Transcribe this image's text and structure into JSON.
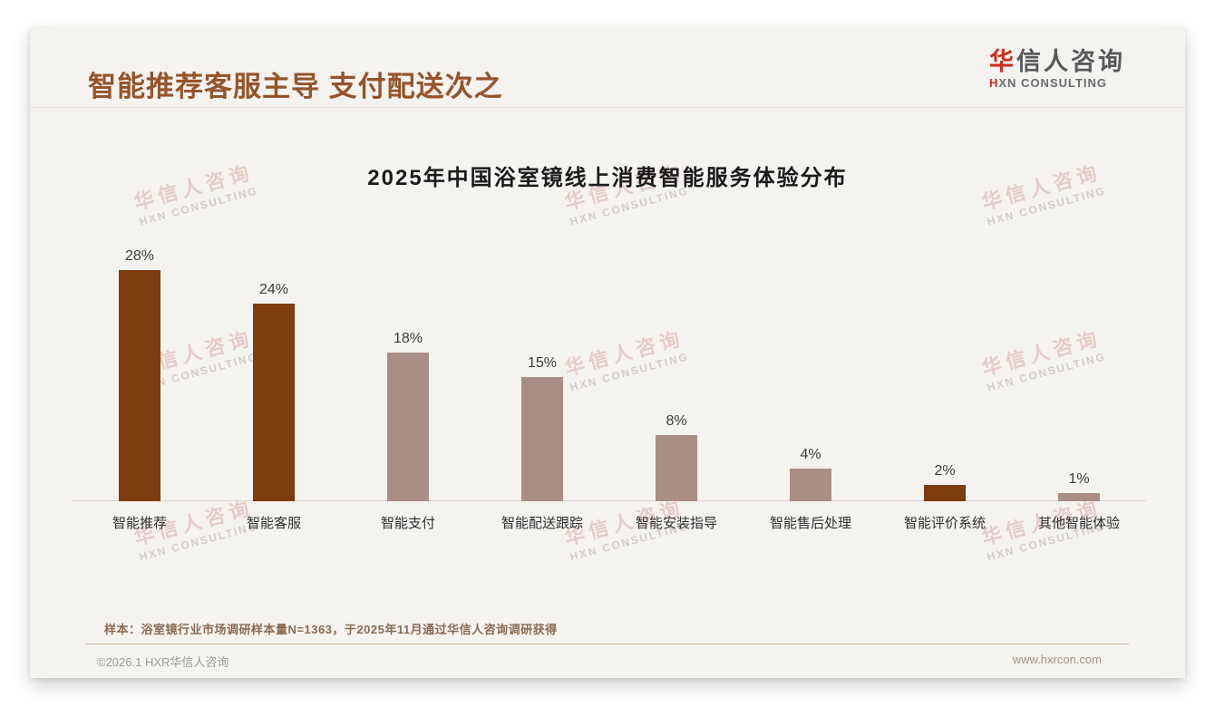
{
  "page": {
    "title": "智能推荐客服主导 支付配送次之",
    "logo": {
      "cn_accent": "华",
      "cn_rest": "信人咨询",
      "en_accent": "H",
      "en_rest": "XN CONSULTING"
    },
    "watermark": {
      "line1": "华信人咨询",
      "line2": "HXN CONSULTING"
    },
    "footer": {
      "sample_note": "样本：浴室镜行业市场调研样本量N=1363，于2025年11月通过华信人咨询调研获得",
      "copyright": "©2026.1 HXR华信人咨询",
      "website": "www.hxrcon.com"
    }
  },
  "chart_data": {
    "type": "bar",
    "title": "2025年中国浴室镜线上消费智能服务体验分布",
    "categories": [
      "智能推荐",
      "智能客服",
      "智能支付",
      "智能配送跟踪",
      "智能安装指导",
      "智能售后处理",
      "智能评价系统",
      "其他智能体验"
    ],
    "values": [
      28,
      24,
      18,
      15,
      8,
      4,
      2,
      1
    ],
    "value_labels": [
      "28%",
      "24%",
      "18%",
      "15%",
      "8%",
      "4%",
      "2%",
      "1%"
    ],
    "unit": "%",
    "xlabel": "",
    "ylabel": "",
    "ylim": [
      0,
      30
    ],
    "grid": false,
    "legend": false,
    "bar_colors": [
      "#7e3b0e",
      "#7e3b0e",
      "#a98e87",
      "#a98e87",
      "#a98e87",
      "#a98e87",
      "#7e3b0e",
      "#a98e87"
    ],
    "colors": {
      "dark_brown": "#7e3b0e",
      "rosy_brown": "#a98e87",
      "title_brown": "#96542b",
      "logo_red": "#cf2a1b"
    }
  }
}
